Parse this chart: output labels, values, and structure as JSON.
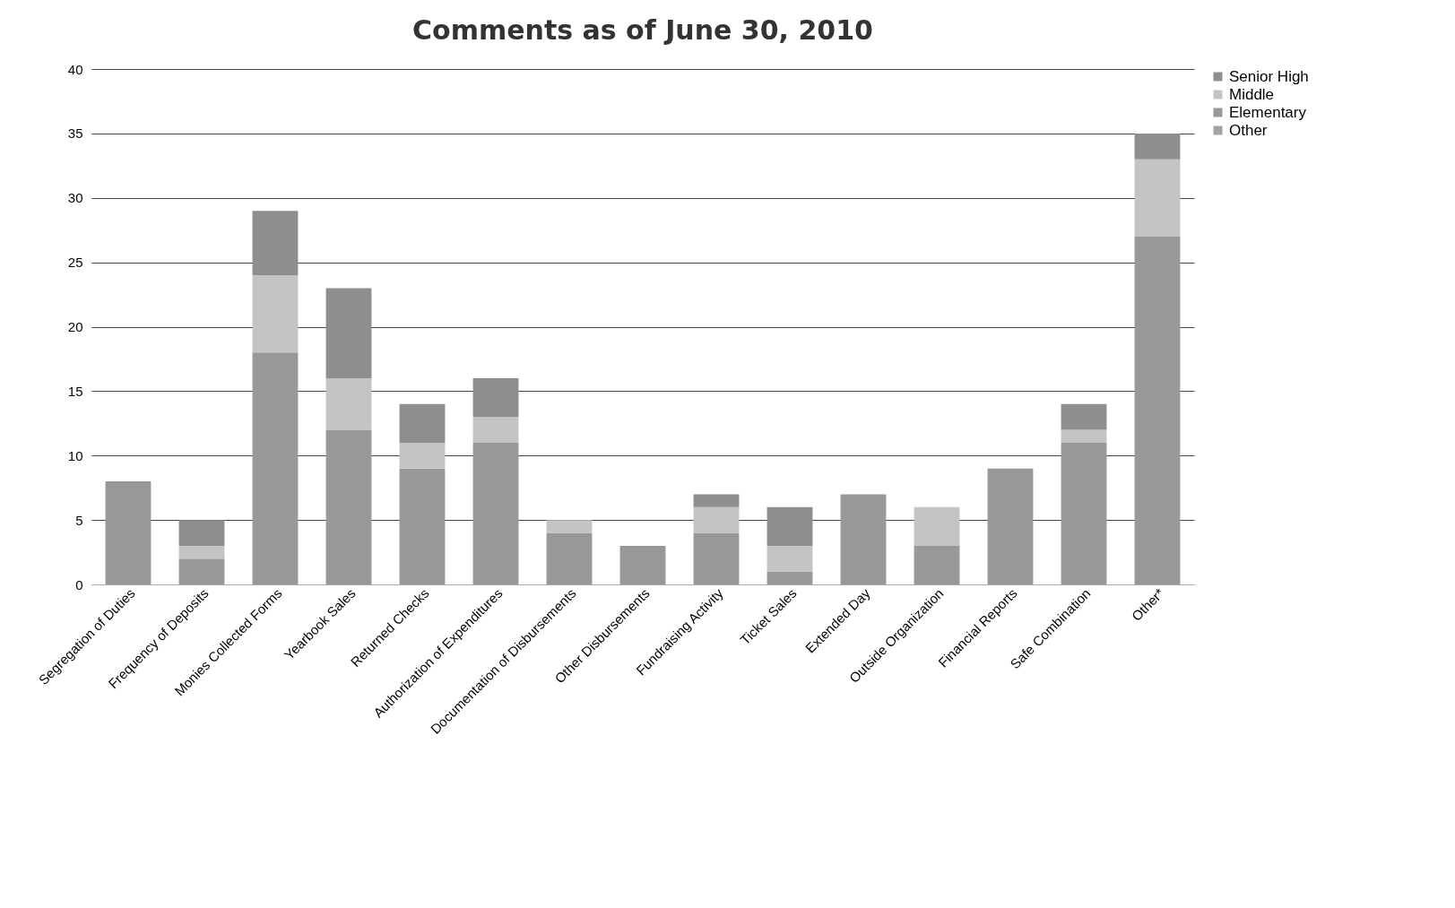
{
  "chart_data": {
    "type": "bar",
    "title": "Comments as of June 30, 2010",
    "stacked": true,
    "legend": "right",
    "grid": "y",
    "categories": [
      "Segregation of Duties",
      "Frequency of Deposits",
      "Monies Collected Forms",
      "Yearbook Sales",
      "Returned Checks",
      "Authorization of Expenditures",
      "Documentation of Disbursements",
      "Other Disbursements",
      "Fundraising Activity",
      "Ticket Sales",
      "Extended Day",
      "Outside Organization",
      "Financial Reports",
      "Safe Combination",
      "Other*"
    ],
    "ylim": [
      0,
      40
    ],
    "yticks": [
      0,
      5,
      10,
      15,
      20,
      25,
      30,
      35,
      40
    ],
    "series": [
      {
        "name": "Other",
        "color": "#a3a3a3",
        "values": [
          0,
          0,
          0,
          0,
          0,
          0,
          0,
          0,
          0,
          0,
          0,
          0,
          0,
          0,
          0
        ]
      },
      {
        "name": "Elementary",
        "color": "#989898",
        "values": [
          8,
          2,
          18,
          12,
          9,
          11,
          4,
          3,
          4,
          1,
          7,
          3,
          9,
          11,
          27
        ]
      },
      {
        "name": "Middle",
        "color": "#c4c4c4",
        "values": [
          0,
          1,
          6,
          4,
          2,
          2,
          1,
          0,
          2,
          2,
          0,
          3,
          0,
          1,
          6
        ]
      },
      {
        "name": "Senior High",
        "color": "#8e8e8e",
        "values": [
          0,
          2,
          5,
          7,
          3,
          3,
          0,
          0,
          1,
          3,
          0,
          0,
          0,
          2,
          2
        ]
      }
    ]
  }
}
